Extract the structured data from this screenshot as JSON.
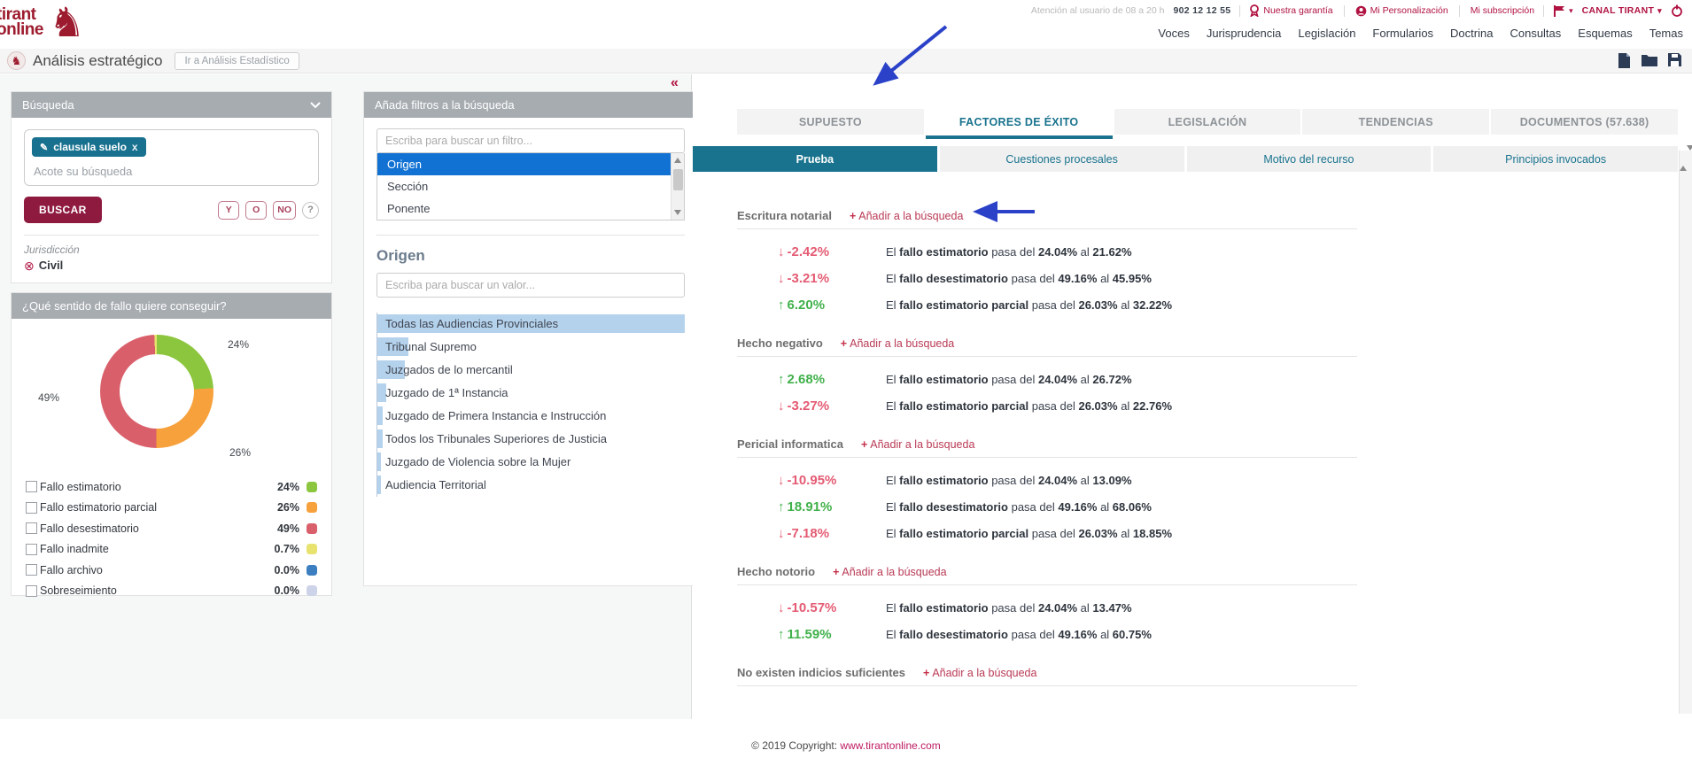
{
  "icons": {
    "collapse": "«",
    "pencil": "✎",
    "tag_close": "x",
    "civil_remove": "⊗",
    "caret": "▾",
    "up_arrow": "↑",
    "down_arrow": "↓",
    "knight": "♞",
    "copyright": "©"
  },
  "topbar": {
    "attention": "Atención al usuario de 08 a 20 h",
    "phone": "902 12 12 55",
    "links": [
      {
        "label": "Nuestra garantía",
        "icon": "medal-icon"
      },
      {
        "label": "Mi Personalización",
        "icon": "person-icon"
      },
      {
        "label": "Mi subscripción",
        "icon": null
      }
    ],
    "canal": "CANAL TIRANT"
  },
  "logo": {
    "line1": "tirant",
    "line2": "online"
  },
  "nav": {
    "items": [
      "Voces",
      "Jurisprudencia",
      "Legislación",
      "Formularios",
      "Doctrina",
      "Consultas",
      "Esquemas",
      "Temas"
    ]
  },
  "header": {
    "title": "Análisis estratégico",
    "stat_button": "Ir a Análisis Estadístico"
  },
  "search_panel": {
    "title": "Búsqueda",
    "tag": "clausula suelo",
    "placeholder": "Acote su búsqueda",
    "buscar": "BUSCAR",
    "operators": [
      "Y",
      "O",
      "NO"
    ],
    "help": "?",
    "jurisdiccion_label": "Jurisdicción",
    "jurisdiccion_value": "Civil"
  },
  "chart_data": {
    "type": "pie",
    "donut": true,
    "title": "¿Qué sentido de fallo quiere conseguir?",
    "categories": [
      "Fallo estimatorio",
      "Fallo estimatorio parcial",
      "Fallo desestimatorio",
      "Fallo inadmite",
      "Fallo archivo",
      "Sobreseimiento"
    ],
    "values": [
      24,
      26,
      49,
      0.7,
      0.0,
      0.0
    ],
    "labels": [
      "24%",
      "26%",
      "49%",
      "0.7%",
      "0.0%",
      "0.0%"
    ],
    "colors": [
      "#8cc63e",
      "#f7a13c",
      "#d9606b",
      "#e7e36e",
      "#3c7fc0",
      "#cdd3e8"
    ],
    "legend_position": "bottom",
    "callouts": [
      {
        "label": "24%",
        "pos": "co-tr"
      },
      {
        "label": "49%",
        "pos": "co-left"
      },
      {
        "label": "26%",
        "pos": "co-br"
      }
    ]
  },
  "filters_panel": {
    "title": "Añada filtros a la búsqueda",
    "filter_placeholder": "Escriba para buscar un filtro...",
    "filter_options": [
      {
        "label": "Origen",
        "selected": true
      },
      {
        "label": "Sección",
        "selected": false
      },
      {
        "label": "Ponente",
        "selected": false
      }
    ],
    "section_title": "Origen",
    "value_placeholder": "Escriba para buscar un valor...",
    "origins": [
      {
        "label": "Todas las Audiencias Provinciales",
        "bar_pct": 100
      },
      {
        "label": "Tribunal Supremo",
        "bar_pct": 10
      },
      {
        "label": "Juzgados de lo mercantil",
        "bar_pct": 9
      },
      {
        "label": "Juzgado de 1ª Instancia",
        "bar_pct": 3
      },
      {
        "label": "Juzgado de Primera Instancia e Instrucción",
        "bar_pct": 1.6
      },
      {
        "label": "Todos los Tribunales Superiores de Justicia",
        "bar_pct": 1.6
      },
      {
        "label": "Juzgado de Violencia sobre la Mujer",
        "bar_pct": 1.2
      },
      {
        "label": "Audiencia Territorial",
        "bar_pct": 1.2
      }
    ]
  },
  "results": {
    "tabs": [
      {
        "label": "SUPUESTO",
        "active": false
      },
      {
        "label": "FACTORES DE ÉXITO",
        "active": true
      },
      {
        "label": "LEGISLACIÓN",
        "active": false
      },
      {
        "label": "TENDENCIAS",
        "active": false
      },
      {
        "label": "DOCUMENTOS (57.638)",
        "active": false
      }
    ],
    "subtabs": [
      {
        "label": "Prueba",
        "active": true
      },
      {
        "label": "Cuestiones procesales",
        "active": false
      },
      {
        "label": "Motivo del recurso",
        "active": false
      },
      {
        "label": "Principios invocados",
        "active": false
      }
    ],
    "add_plus": "+",
    "add_label": "Añadir a la búsqueda",
    "stat_prefix": "El ",
    "stat_mid": " pasa del ",
    "stat_al": " al ",
    "factors": [
      {
        "name": "Escritura notarial",
        "stats": [
          {
            "dir": "down",
            "pct": "-2.42%",
            "term": "fallo estimatorio",
            "from": "24.04%",
            "to": "21.62%"
          },
          {
            "dir": "down",
            "pct": "-3.21%",
            "term": "fallo desestimatorio",
            "from": "49.16%",
            "to": "45.95%"
          },
          {
            "dir": "up",
            "pct": "6.20%",
            "term": "fallo estimatorio parcial",
            "from": "26.03%",
            "to": "32.22%"
          }
        ]
      },
      {
        "name": "Hecho negativo",
        "stats": [
          {
            "dir": "up",
            "pct": "2.68%",
            "term": "fallo estimatorio",
            "from": "24.04%",
            "to": "26.72%"
          },
          {
            "dir": "down",
            "pct": "-3.27%",
            "term": "fallo estimatorio parcial",
            "from": "26.03%",
            "to": "22.76%"
          }
        ]
      },
      {
        "name": "Pericial informatica",
        "stats": [
          {
            "dir": "down",
            "pct": "-10.95%",
            "term": "fallo estimatorio",
            "from": "24.04%",
            "to": "13.09%"
          },
          {
            "dir": "up",
            "pct": "18.91%",
            "term": "fallo desestimatorio",
            "from": "49.16%",
            "to": "68.06%"
          },
          {
            "dir": "down",
            "pct": "-7.18%",
            "term": "fallo estimatorio parcial",
            "from": "26.03%",
            "to": "18.85%"
          }
        ]
      },
      {
        "name": "Hecho notorio",
        "stats": [
          {
            "dir": "down",
            "pct": "-10.57%",
            "term": "fallo estimatorio",
            "from": "24.04%",
            "to": "13.47%"
          },
          {
            "dir": "up",
            "pct": "11.59%",
            "term": "fallo desestimatorio",
            "from": "49.16%",
            "to": "60.75%"
          }
        ]
      },
      {
        "name": "No existen indicios suficientes",
        "stats": []
      }
    ]
  },
  "footer": {
    "copyright": "© 2019 Copyright:",
    "link": "www.tirantonline.com"
  }
}
